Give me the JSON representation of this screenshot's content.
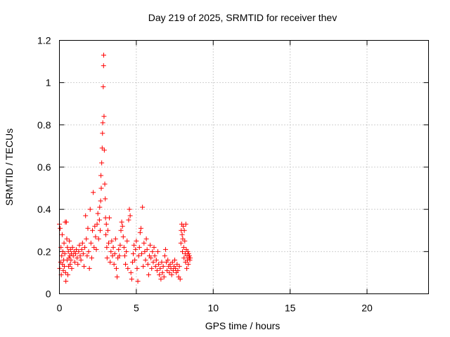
{
  "chart_data": {
    "type": "scatter",
    "title": "Day 219 of 2025, SRMTID for receiver thev",
    "xlabel": "GPS time / hours",
    "ylabel": "SRMTID / TECUs",
    "xlim": [
      0,
      24
    ],
    "ylim": [
      0,
      1.2
    ],
    "xticks": [
      "0",
      "5",
      "10",
      "15",
      "20"
    ],
    "yticks": [
      "0",
      "0.2",
      "0.4",
      "0.6",
      "0.8",
      "1",
      "1.2"
    ],
    "grid": true,
    "marker": "+",
    "color": "#ff0000",
    "series": [
      {
        "name": "SRMTID",
        "points": [
          [
            0.0,
            0.33
          ],
          [
            0.02,
            0.12
          ],
          [
            0.05,
            0.31
          ],
          [
            0.08,
            0.15
          ],
          [
            0.1,
            0.22
          ],
          [
            0.12,
            0.09
          ],
          [
            0.15,
            0.18
          ],
          [
            0.18,
            0.28
          ],
          [
            0.2,
            0.14
          ],
          [
            0.22,
            0.2
          ],
          [
            0.25,
            0.11
          ],
          [
            0.28,
            0.16
          ],
          [
            0.3,
            0.24
          ],
          [
            0.32,
            0.13
          ],
          [
            0.35,
            0.19
          ],
          [
            0.38,
            0.34
          ],
          [
            0.4,
            0.1
          ],
          [
            0.42,
            0.06
          ],
          [
            0.45,
            0.34
          ],
          [
            0.48,
            0.26
          ],
          [
            0.5,
            0.16
          ],
          [
            0.52,
            0.22
          ],
          [
            0.55,
            0.09
          ],
          [
            0.58,
            0.2
          ],
          [
            0.6,
            0.13
          ],
          [
            0.62,
            0.17
          ],
          [
            0.65,
            0.25
          ],
          [
            0.68,
            0.18
          ],
          [
            0.7,
            0.14
          ],
          [
            0.72,
            0.21
          ],
          [
            0.75,
            0.16
          ],
          [
            0.78,
            0.19
          ],
          [
            0.8,
            0.12
          ],
          [
            0.85,
            0.22
          ],
          [
            0.9,
            0.18
          ],
          [
            0.95,
            0.2
          ],
          [
            1.0,
            0.15
          ],
          [
            1.05,
            0.19
          ],
          [
            1.1,
            0.21
          ],
          [
            1.15,
            0.17
          ],
          [
            1.2,
            0.14
          ],
          [
            1.25,
            0.2
          ],
          [
            1.3,
            0.23
          ],
          [
            1.35,
            0.18
          ],
          [
            1.4,
            0.16
          ],
          [
            1.45,
            0.21
          ],
          [
            1.5,
            0.24
          ],
          [
            1.55,
            0.19
          ],
          [
            1.6,
            0.13
          ],
          [
            1.65,
            0.22
          ],
          [
            1.7,
            0.37
          ],
          [
            1.75,
            0.26
          ],
          [
            1.8,
            0.18
          ],
          [
            1.85,
            0.31
          ],
          [
            1.9,
            0.2
          ],
          [
            1.95,
            0.12
          ],
          [
            2.0,
            0.4
          ],
          [
            2.05,
            0.24
          ],
          [
            2.1,
            0.17
          ],
          [
            2.15,
            0.3
          ],
          [
            2.2,
            0.48
          ],
          [
            2.25,
            0.22
          ],
          [
            2.3,
            0.32
          ],
          [
            2.35,
            0.27
          ],
          [
            2.4,
            0.21
          ],
          [
            2.45,
            0.33
          ],
          [
            2.5,
            0.38
          ],
          [
            2.55,
            0.26
          ],
          [
            2.6,
            0.35
          ],
          [
            2.62,
            0.41
          ],
          [
            2.65,
            0.3
          ],
          [
            2.68,
            0.44
          ],
          [
            2.7,
            0.56
          ],
          [
            2.72,
            0.5
          ],
          [
            2.75,
            0.62
          ],
          [
            2.78,
            0.69
          ],
          [
            2.8,
            0.76
          ],
          [
            2.82,
            0.81
          ],
          [
            2.85,
            0.98
          ],
          [
            2.87,
            1.08
          ],
          [
            2.88,
            1.13
          ],
          [
            2.9,
            0.84
          ],
          [
            2.92,
            0.68
          ],
          [
            2.95,
            0.52
          ],
          [
            2.98,
            0.45
          ],
          [
            3.0,
            0.36
          ],
          [
            3.02,
            0.28
          ],
          [
            3.05,
            0.33
          ],
          [
            3.08,
            0.22
          ],
          [
            3.1,
            0.17
          ],
          [
            3.15,
            0.3
          ],
          [
            3.2,
            0.24
          ],
          [
            3.25,
            0.36
          ],
          [
            3.3,
            0.15
          ],
          [
            3.35,
            0.2
          ],
          [
            3.4,
            0.25
          ],
          [
            3.45,
            0.18
          ],
          [
            3.5,
            0.22
          ],
          [
            3.55,
            0.14
          ],
          [
            3.6,
            0.19
          ],
          [
            3.65,
            0.26
          ],
          [
            3.7,
            0.12
          ],
          [
            3.75,
            0.08
          ],
          [
            3.8,
            0.17
          ],
          [
            3.85,
            0.21
          ],
          [
            3.9,
            0.18
          ],
          [
            3.95,
            0.23
          ],
          [
            4.0,
            0.3
          ],
          [
            4.05,
            0.34
          ],
          [
            4.1,
            0.32
          ],
          [
            4.15,
            0.27
          ],
          [
            4.2,
            0.22
          ],
          [
            4.25,
            0.18
          ],
          [
            4.3,
            0.14
          ],
          [
            4.35,
            0.2
          ],
          [
            4.4,
            0.25
          ],
          [
            4.45,
            0.12
          ],
          [
            4.5,
            0.35
          ],
          [
            4.55,
            0.4
          ],
          [
            4.6,
            0.37
          ],
          [
            4.65,
            0.1
          ],
          [
            4.7,
            0.07
          ],
          [
            4.75,
            0.15
          ],
          [
            4.8,
            0.19
          ],
          [
            4.85,
            0.23
          ],
          [
            4.9,
            0.16
          ],
          [
            4.95,
            0.21
          ],
          [
            5.0,
            0.25
          ],
          [
            5.05,
            0.12
          ],
          [
            5.1,
            0.06
          ],
          [
            5.15,
            0.18
          ],
          [
            5.2,
            0.22
          ],
          [
            5.25,
            0.29
          ],
          [
            5.3,
            0.31
          ],
          [
            5.35,
            0.19
          ],
          [
            5.4,
            0.41
          ],
          [
            5.45,
            0.13
          ],
          [
            5.5,
            0.24
          ],
          [
            5.55,
            0.2
          ],
          [
            5.6,
            0.16
          ],
          [
            5.65,
            0.26
          ],
          [
            5.7,
            0.21
          ],
          [
            5.75,
            0.14
          ],
          [
            5.8,
            0.09
          ],
          [
            5.85,
            0.18
          ],
          [
            5.9,
            0.23
          ],
          [
            5.95,
            0.17
          ],
          [
            6.0,
            0.12
          ],
          [
            6.05,
            0.2
          ],
          [
            6.1,
            0.15
          ],
          [
            6.15,
            0.22
          ],
          [
            6.2,
            0.18
          ],
          [
            6.25,
            0.13
          ],
          [
            6.3,
            0.16
          ],
          [
            6.35,
            0.11
          ],
          [
            6.4,
            0.2
          ],
          [
            6.45,
            0.14
          ],
          [
            6.5,
            0.09
          ],
          [
            6.55,
            0.12
          ],
          [
            6.6,
            0.07
          ],
          [
            6.65,
            0.15
          ],
          [
            6.7,
            0.1
          ],
          [
            6.75,
            0.13
          ],
          [
            6.8,
            0.08
          ],
          [
            6.85,
            0.18
          ],
          [
            6.9,
            0.21
          ],
          [
            6.95,
            0.15
          ],
          [
            7.0,
            0.11
          ],
          [
            7.05,
            0.16
          ],
          [
            7.1,
            0.13
          ],
          [
            7.15,
            0.1
          ],
          [
            7.2,
            0.14
          ],
          [
            7.25,
            0.12
          ],
          [
            7.3,
            0.09
          ],
          [
            7.35,
            0.15
          ],
          [
            7.4,
            0.11
          ],
          [
            7.45,
            0.13
          ],
          [
            7.5,
            0.16
          ],
          [
            7.55,
            0.12
          ],
          [
            7.6,
            0.1
          ],
          [
            7.65,
            0.14
          ],
          [
            7.7,
            0.11
          ],
          [
            7.75,
            0.08
          ],
          [
            7.8,
            0.13
          ],
          [
            7.85,
            0.07
          ],
          [
            7.9,
            0.24
          ],
          [
            7.92,
            0.3
          ],
          [
            7.95,
            0.33
          ],
          [
            7.98,
            0.28
          ],
          [
            8.0,
            0.2
          ],
          [
            8.02,
            0.26
          ],
          [
            8.05,
            0.32
          ],
          [
            8.08,
            0.22
          ],
          [
            8.1,
            0.17
          ],
          [
            8.12,
            0.3
          ],
          [
            8.15,
            0.25
          ],
          [
            8.18,
            0.19
          ],
          [
            8.2,
            0.15
          ],
          [
            8.22,
            0.33
          ],
          [
            8.25,
            0.21
          ],
          [
            8.28,
            0.12
          ],
          [
            8.3,
            0.18
          ],
          [
            8.32,
            0.16
          ],
          [
            8.35,
            0.2
          ],
          [
            8.38,
            0.14
          ],
          [
            8.4,
            0.19
          ],
          [
            8.42,
            0.17
          ],
          [
            8.45,
            0.18
          ],
          [
            8.48,
            0.16
          ],
          [
            8.5,
            0.17
          ]
        ]
      }
    ]
  }
}
